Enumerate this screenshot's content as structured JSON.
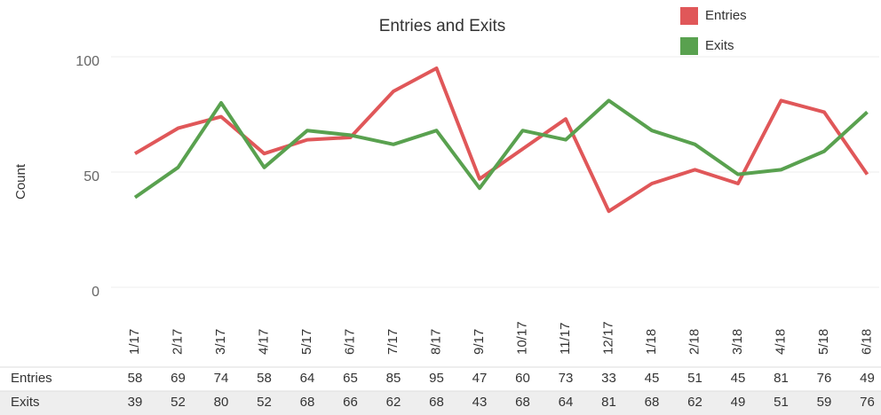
{
  "chart_data": {
    "type": "line",
    "title": "Entries and Exits",
    "y_label": "Count",
    "categories": [
      "1/17",
      "2/17",
      "3/17",
      "4/17",
      "5/17",
      "6/17",
      "7/17",
      "8/17",
      "9/17",
      "10/17",
      "11/17",
      "12/17",
      "1/18",
      "2/18",
      "3/18",
      "4/18",
      "5/18",
      "6/18"
    ],
    "series": [
      {
        "name": "Entries",
        "color": "#e05759",
        "values": [
          58,
          69,
          74,
          58,
          64,
          65,
          85,
          95,
          47,
          60,
          73,
          33,
          45,
          51,
          45,
          81,
          76,
          49
        ]
      },
      {
        "name": "Exits",
        "color": "#59a14f",
        "values": [
          39,
          52,
          80,
          52,
          68,
          66,
          62,
          68,
          43,
          68,
          64,
          81,
          68,
          62,
          49,
          51,
          59,
          76
        ]
      }
    ],
    "ylim": [
      0,
      100
    ],
    "yticks": [
      0,
      50,
      100
    ],
    "grid": true,
    "legend": "top-right"
  }
}
